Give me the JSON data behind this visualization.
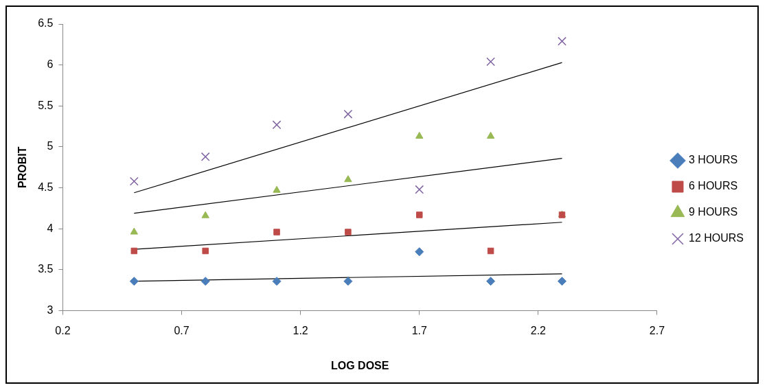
{
  "chart_data": {
    "type": "scatter",
    "xlabel": "LOG DOSE",
    "ylabel": "PROBIT",
    "xlim": [
      0.2,
      2.7
    ],
    "xticks": [
      0.2,
      0.7,
      1.2,
      1.7,
      2.2,
      2.7
    ],
    "ylim": [
      3,
      6.5
    ],
    "yticks": [
      3,
      3.5,
      4,
      4.5,
      5,
      5.5,
      6,
      6.5
    ],
    "grid": false,
    "legend": "right",
    "x": [
      0.5,
      0.8,
      1.1,
      1.4,
      1.7,
      2.0,
      2.3
    ],
    "series": [
      {
        "name": "3 HOURS",
        "color": "#4a7ebb",
        "marker": "diamond",
        "values": [
          3.36,
          3.36,
          3.36,
          3.36,
          3.72,
          3.36,
          3.36
        ]
      },
      {
        "name": "6 HOURS",
        "color": "#be4b48",
        "marker": "square",
        "values": [
          3.73,
          3.73,
          3.96,
          3.96,
          4.17,
          3.73,
          4.17
        ]
      },
      {
        "name": "9 HOURS",
        "color": "#98b954",
        "marker": "triangle",
        "values": [
          3.96,
          4.16,
          4.47,
          4.6,
          5.13,
          5.13,
          4.17
        ]
      },
      {
        "name": "12 HOURS",
        "color": "#8064a2",
        "marker": "cross",
        "values": [
          4.58,
          4.88,
          5.27,
          5.4,
          4.48,
          6.04,
          6.29
        ]
      },
      {
        "type": "line",
        "color": "#000000",
        "marker": "none",
        "values": [
          3.36,
          null,
          null,
          null,
          null,
          null,
          3.45
        ]
      },
      {
        "type": "line",
        "color": "#000000",
        "marker": "none",
        "values": [
          3.75,
          null,
          null,
          null,
          null,
          null,
          4.08
        ]
      },
      {
        "type": "line",
        "color": "#000000",
        "marker": "none",
        "values": [
          4.19,
          null,
          null,
          null,
          null,
          null,
          4.86
        ]
      },
      {
        "type": "line",
        "color": "#000000",
        "marker": "none",
        "values": [
          4.44,
          null,
          null,
          null,
          null,
          null,
          6.03
        ]
      }
    ]
  }
}
